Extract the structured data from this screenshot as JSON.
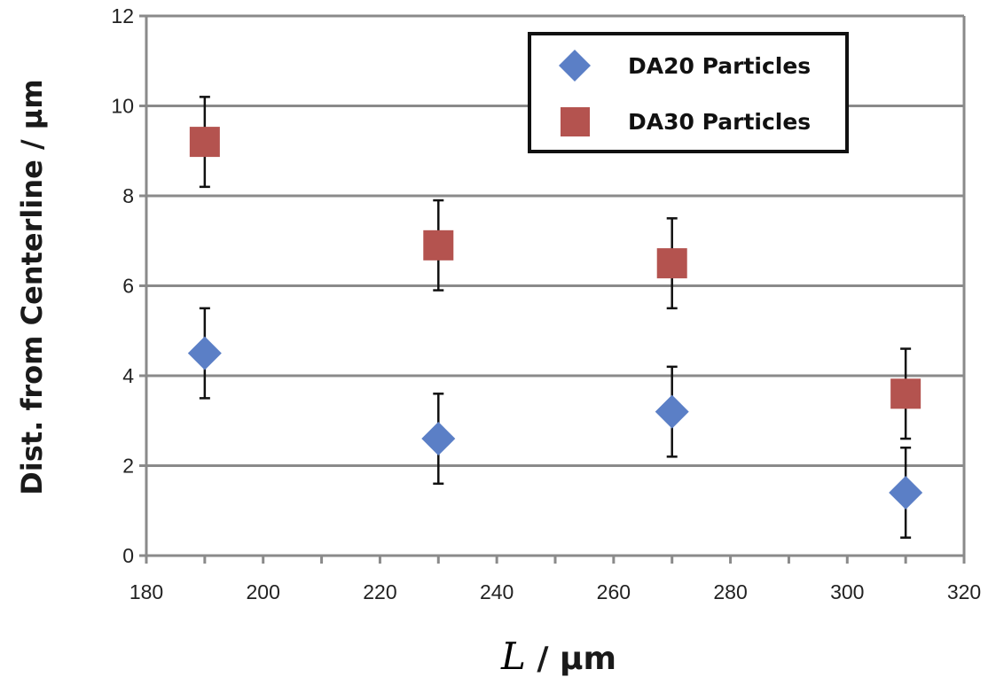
{
  "chart_data": {
    "type": "scatter",
    "xlabel_symbol": "L",
    "xlabel_unit": " / µm",
    "ylabel": "Dist. from Centerline / µm",
    "xlim": [
      180,
      320
    ],
    "ylim": [
      0,
      12
    ],
    "x_ticks": [
      "180",
      "200",
      "220",
      "240",
      "260",
      "280",
      "300",
      "320"
    ],
    "y_ticks": [
      "0",
      "2",
      "4",
      "6",
      "8",
      "10",
      "12"
    ],
    "grid": "horizontal",
    "legend_position": "top-right",
    "series": [
      {
        "name": "DA20 Particles",
        "marker": "diamond",
        "color": "#5b7fc6",
        "x": [
          190,
          230,
          270,
          310
        ],
        "y": [
          4.5,
          2.6,
          3.2,
          1.4
        ],
        "error": [
          1.0,
          1.0,
          1.0,
          1.0
        ]
      },
      {
        "name": "DA30 Particles",
        "marker": "square",
        "color": "#b4534f",
        "x": [
          190,
          230,
          270,
          310
        ],
        "y": [
          9.2,
          6.9,
          6.5,
          3.6
        ],
        "error": [
          1.0,
          1.0,
          1.0,
          1.0
        ]
      }
    ]
  }
}
